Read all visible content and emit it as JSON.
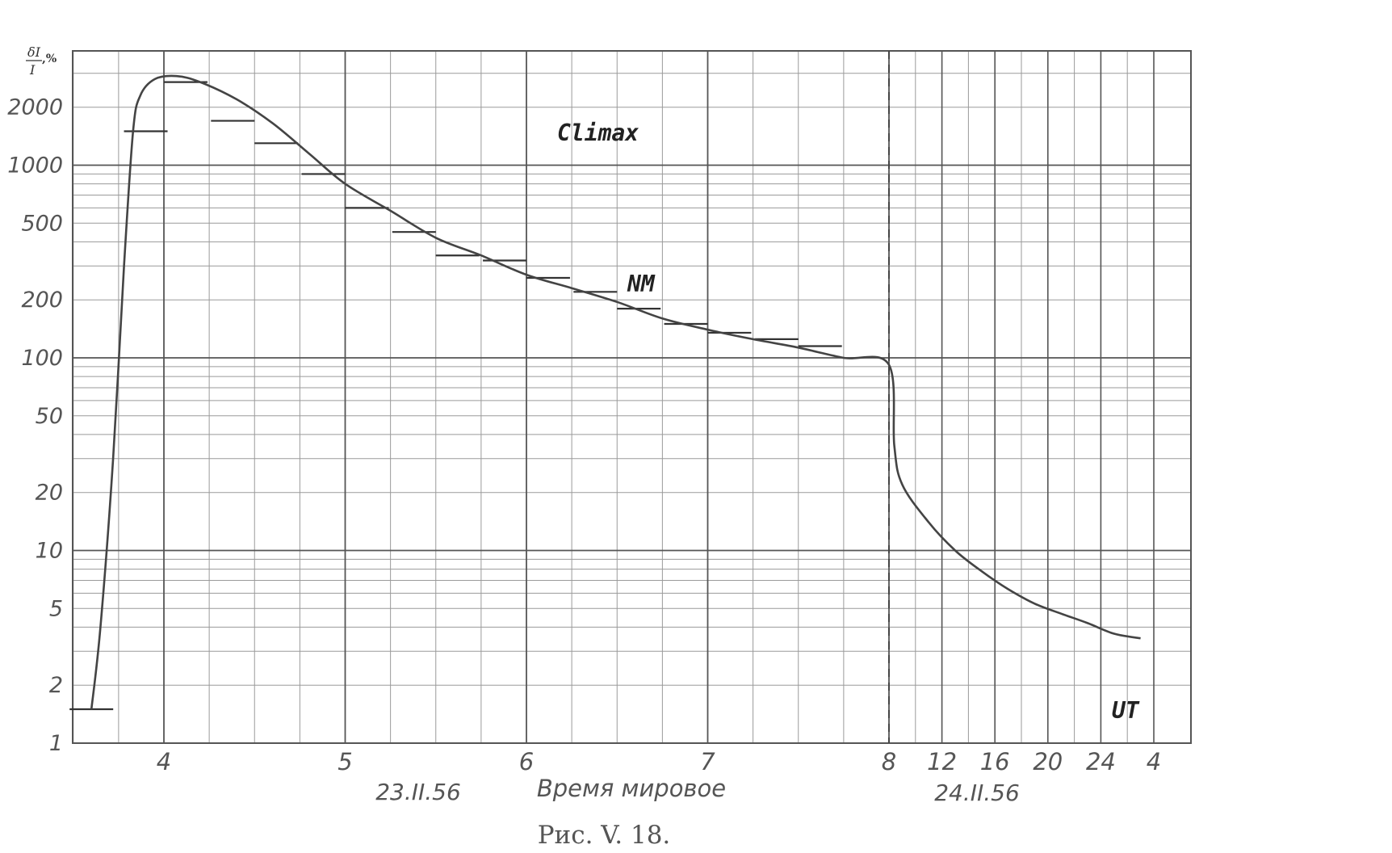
{
  "chart_data": {
    "type": "line",
    "y_scale": "log",
    "ylabel_numerator": "δI",
    "ylabel_denominator": "I",
    "ylabel_unit": ",%",
    "y_ticks": [
      1,
      2,
      5,
      10,
      20,
      50,
      100,
      200,
      500,
      1000,
      2000
    ],
    "y_tick_labels": [
      "1",
      "2",
      "5",
      "10",
      "20",
      "50",
      "100",
      "200",
      "500",
      "1000",
      "2000"
    ],
    "x_ticks": [
      {
        "t": 4,
        "label": "4"
      },
      {
        "t": 5,
        "label": "5"
      },
      {
        "t": 6,
        "label": "6"
      },
      {
        "t": 7,
        "label": "7"
      },
      {
        "t": 8,
        "label": "8"
      },
      {
        "t": 12,
        "label": "12"
      },
      {
        "t": 16,
        "label": "16"
      },
      {
        "t": 20,
        "label": "20"
      },
      {
        "t": 24,
        "label": "24"
      },
      {
        "t": 28,
        "label": "4"
      }
    ],
    "xlabel": "Время мировое",
    "date_left": "23.II.56",
    "date_right": "24.II.56",
    "station_label": "Climax",
    "series_label": "NM",
    "time_label": "UT",
    "series": [
      {
        "points": [
          [
            3.6,
            1.5
          ],
          [
            3.65,
            4
          ],
          [
            3.72,
            30
          ],
          [
            3.78,
            300
          ],
          [
            3.83,
            1500
          ],
          [
            3.87,
            2300
          ],
          [
            3.95,
            2800
          ],
          [
            4.07,
            2900
          ],
          [
            4.2,
            2700
          ],
          [
            4.4,
            2200
          ],
          [
            4.6,
            1650
          ],
          [
            4.8,
            1150
          ],
          [
            5.0,
            800
          ],
          [
            5.25,
            580
          ],
          [
            5.5,
            420
          ],
          [
            5.75,
            340
          ],
          [
            6.0,
            270
          ],
          [
            6.25,
            230
          ],
          [
            6.5,
            195
          ],
          [
            6.75,
            160
          ],
          [
            7.0,
            140
          ],
          [
            7.25,
            125
          ],
          [
            7.5,
            113
          ],
          [
            7.75,
            100
          ],
          [
            8.0,
            92
          ],
          [
            8.4,
            35
          ],
          [
            9.0,
            22
          ],
          [
            11.0,
            14
          ],
          [
            13.0,
            10
          ],
          [
            15.0,
            7.8
          ],
          [
            17.0,
            6.3
          ],
          [
            19.0,
            5.3
          ],
          [
            21.0,
            4.7
          ],
          [
            23.0,
            4.2
          ],
          [
            25.0,
            3.7
          ],
          [
            27.0,
            3.5
          ]
        ]
      }
    ],
    "hourly_marks": [
      [
        3.6,
        1.5
      ],
      [
        3.9,
        1500
      ],
      [
        4.12,
        2700
      ],
      [
        4.38,
        1700
      ],
      [
        4.62,
        1300
      ],
      [
        4.88,
        900
      ],
      [
        5.12,
        600
      ],
      [
        5.38,
        450
      ],
      [
        5.62,
        340
      ],
      [
        5.88,
        320
      ],
      [
        6.12,
        260
      ],
      [
        6.38,
        220
      ],
      [
        6.62,
        180
      ],
      [
        6.88,
        150
      ],
      [
        7.12,
        135
      ],
      [
        7.38,
        125
      ],
      [
        7.62,
        115
      ]
    ],
    "xlim": [
      3.5,
      28.3
    ],
    "ylim": [
      1,
      3500
    ],
    "grid": true,
    "vertical_dashed_line_x": 8
  },
  "caption": "Рис. V. 18."
}
